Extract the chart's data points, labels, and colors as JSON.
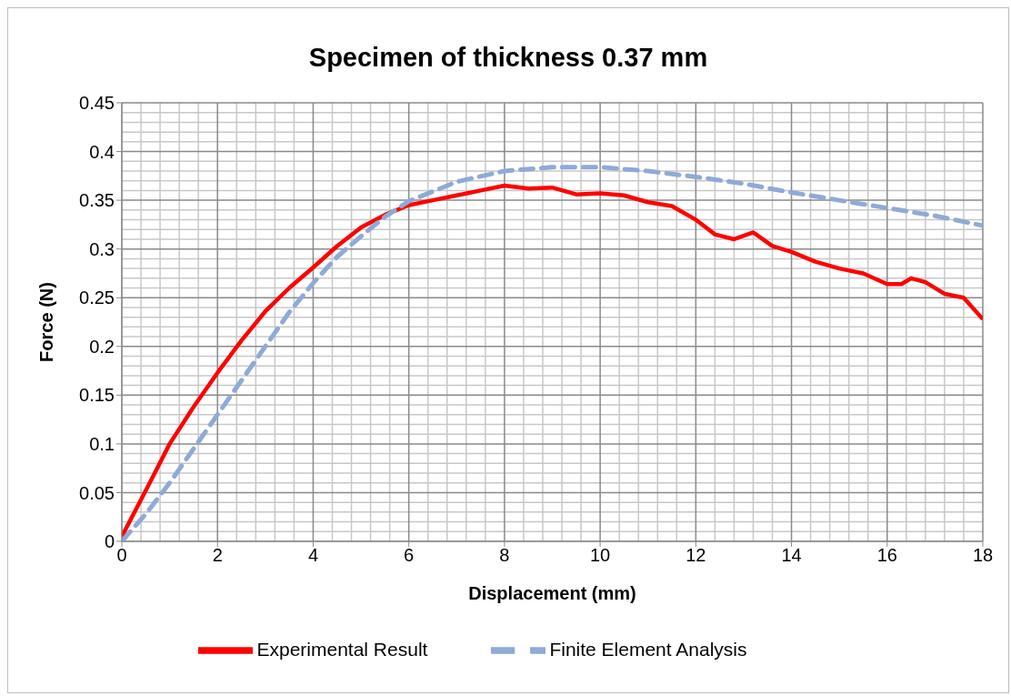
{
  "chart_data": {
    "type": "line",
    "title": "Specimen of thickness 0.37 mm",
    "xlabel": "Displacement (mm)",
    "ylabel": "Force (N)",
    "xlim": [
      0,
      18
    ],
    "xticks": [
      0,
      2,
      4,
      6,
      8,
      10,
      12,
      14,
      16,
      18
    ],
    "ylim": [
      0,
      0.45
    ],
    "yticks": [
      0,
      0.05,
      0.1,
      0.15,
      0.2,
      0.25,
      0.3,
      0.35,
      0.4,
      0.45
    ],
    "grid": true,
    "legend": "bottom",
    "series": [
      {
        "name": "Experimental Result",
        "color": "#ff0000",
        "line_style": "solid",
        "x": [
          0,
          0.5,
          1,
          1.5,
          2,
          2.5,
          3,
          3.5,
          4,
          4.5,
          5,
          5.5,
          6,
          6.5,
          7,
          7.5,
          8,
          8.5,
          9,
          9.5,
          10,
          10.5,
          11,
          11.5,
          12,
          12.4,
          12.8,
          13.2,
          13.6,
          14,
          14.5,
          15,
          15.5,
          16,
          16.3,
          16.5,
          16.8,
          17.2,
          17.6,
          18
        ],
        "values": [
          0.005,
          0.052,
          0.1,
          0.138,
          0.173,
          0.206,
          0.236,
          0.26,
          0.281,
          0.303,
          0.322,
          0.335,
          0.345,
          0.35,
          0.355,
          0.36,
          0.365,
          0.362,
          0.363,
          0.356,
          0.357,
          0.355,
          0.348,
          0.344,
          0.33,
          0.315,
          0.31,
          0.317,
          0.303,
          0.297,
          0.287,
          0.28,
          0.275,
          0.264,
          0.264,
          0.27,
          0.266,
          0.254,
          0.25,
          0.228
        ]
      },
      {
        "name": "Finite Element Analysis",
        "color": "#8eaad6",
        "line_style": "dashed",
        "x": [
          0,
          0.5,
          1,
          1.5,
          2,
          2.5,
          3,
          3.5,
          4,
          4.5,
          5,
          5.5,
          6,
          7,
          8,
          9,
          10,
          11,
          12,
          13,
          14,
          15,
          16,
          17,
          18
        ],
        "values": [
          0,
          0.028,
          0.06,
          0.095,
          0.13,
          0.165,
          0.2,
          0.235,
          0.265,
          0.292,
          0.313,
          0.333,
          0.349,
          0.369,
          0.38,
          0.384,
          0.384,
          0.38,
          0.374,
          0.367,
          0.358,
          0.35,
          0.342,
          0.334,
          0.324
        ]
      }
    ]
  }
}
